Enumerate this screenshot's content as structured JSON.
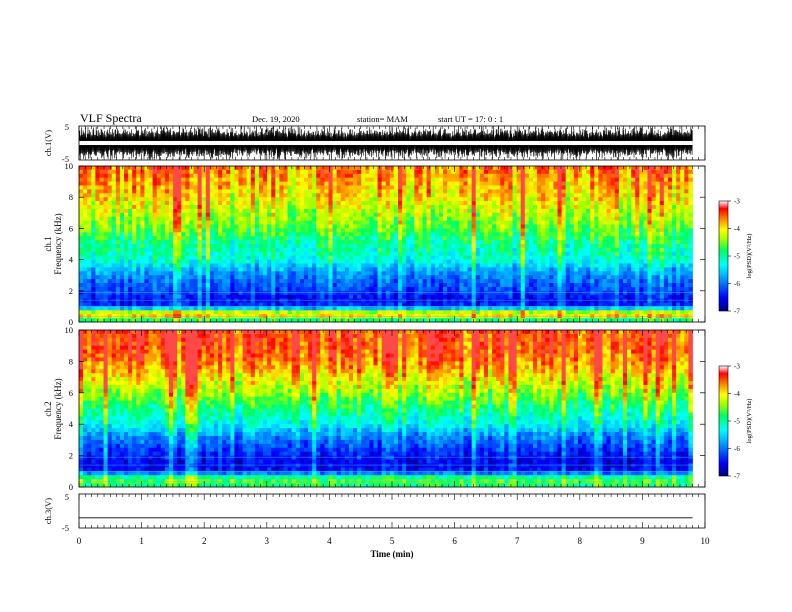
{
  "header": {
    "title": "VLF Spectra",
    "date": "Dec. 19, 2020",
    "station": "station= MAM",
    "start": "start  UT  =   17: 0   : 1"
  },
  "chart_data": [
    {
      "type": "line",
      "name": "ch1-waveform",
      "ylabel": "ch.1(V)",
      "xlim": [
        0,
        10
      ],
      "ylim": [
        -5,
        5
      ],
      "yticks": [
        -5,
        5
      ],
      "xticks": [
        0,
        1,
        2,
        3,
        4,
        5,
        6,
        7,
        8,
        9,
        10
      ],
      "data_end_min": 9.8,
      "description_level": "dense oscillation spanning full range"
    },
    {
      "type": "heatmap",
      "name": "ch1-spectrogram",
      "ylabel": "ch.1\nFrequency  (kHz)",
      "xlim": [
        0,
        10
      ],
      "ylim": [
        0,
        10
      ],
      "yticks": [
        0,
        2,
        4,
        6,
        8,
        10
      ],
      "colorbar": {
        "label": "log(PSD)(V²/Hz)",
        "ticks": [
          -3,
          -4,
          -5,
          -6,
          -7
        ],
        "range": [
          -7,
          -3
        ]
      },
      "profile_khz": [
        0,
        0.5,
        1,
        1.5,
        2,
        2.5,
        3,
        3.5,
        4,
        5,
        6,
        7,
        8,
        9,
        10
      ],
      "profile_logpsd": [
        -5.2,
        -3.6,
        -6.3,
        -6.5,
        -6.2,
        -6.1,
        -5.9,
        -5.6,
        -5.2,
        -5.0,
        -4.6,
        -4.3,
        -4.0,
        -3.8,
        -3.6
      ]
    },
    {
      "type": "heatmap",
      "name": "ch2-spectrogram",
      "ylabel": "ch.2\nFrequency  (kHz)",
      "xlim": [
        0,
        10
      ],
      "ylim": [
        0,
        10
      ],
      "yticks": [
        0,
        2,
        4,
        6,
        8,
        10
      ],
      "colorbar": {
        "label": "log(PSD)(V²/Hz)",
        "ticks": [
          -3,
          -4,
          -5,
          -6,
          -7
        ],
        "range": [
          -7,
          -3
        ]
      },
      "profile_khz": [
        0,
        0.5,
        1,
        1.5,
        2,
        2.5,
        3,
        3.5,
        4,
        5,
        6,
        7,
        8,
        9,
        10
      ],
      "profile_logpsd": [
        -5.0,
        -4.5,
        -6.4,
        -6.6,
        -6.4,
        -6.2,
        -6.0,
        -5.7,
        -5.3,
        -4.9,
        -4.4,
        -4.0,
        -3.6,
        -3.4,
        -3.3
      ]
    },
    {
      "type": "line",
      "name": "ch3-waveform",
      "ylabel": "ch.3(V)",
      "xlim": [
        0,
        10
      ],
      "ylim": [
        -5,
        5
      ],
      "yticks": [
        -5,
        5
      ],
      "level": -2,
      "data_end_min": 9.8
    }
  ],
  "xaxis": {
    "label": "Time  (min)",
    "ticks": [
      "0",
      "1",
      "2",
      "3",
      "4",
      "5",
      "6",
      "7",
      "8",
      "9",
      "10"
    ]
  },
  "colors": {
    "waveform": "#000000",
    "scale": [
      "#000080",
      "#0000ff",
      "#00a0ff",
      "#00ffff",
      "#00ff80",
      "#80ff00",
      "#ffff00",
      "#ff8000",
      "#ff0000",
      "#ffffff"
    ]
  }
}
